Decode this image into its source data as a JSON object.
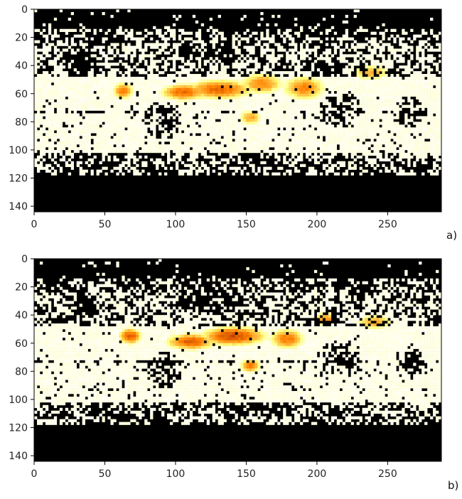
{
  "chart_data": [
    {
      "type": "heatmap",
      "panel_label": "a)",
      "xlabel": "",
      "ylabel": "",
      "xlim": [
        0,
        288
      ],
      "ylim": [
        144,
        0
      ],
      "x_ticks": [
        "0",
        "50",
        "100",
        "150",
        "200",
        "250"
      ],
      "y_ticks": [
        "0",
        "20",
        "40",
        "60",
        "80",
        "100",
        "120",
        "140"
      ],
      "x_tick_values": [
        0,
        50,
        100,
        150,
        200,
        250
      ],
      "y_tick_values": [
        0,
        20,
        40,
        60,
        80,
        100,
        120,
        140
      ],
      "colormap": "afmhot",
      "background_color": "#000000",
      "grid": false,
      "hotspots": [
        {
          "x": 62,
          "y": 57,
          "rx": 6,
          "ry": 5,
          "intensity": 0.75
        },
        {
          "x": 105,
          "y": 58,
          "rx": 14,
          "ry": 5,
          "intensity": 0.8
        },
        {
          "x": 130,
          "y": 56,
          "rx": 20,
          "ry": 6,
          "intensity": 0.8
        },
        {
          "x": 160,
          "y": 52,
          "rx": 12,
          "ry": 6,
          "intensity": 0.7
        },
        {
          "x": 190,
          "y": 55,
          "rx": 12,
          "ry": 7,
          "intensity": 0.7
        },
        {
          "x": 152,
          "y": 76,
          "rx": 6,
          "ry": 4,
          "intensity": 0.6
        },
        {
          "x": 237,
          "y": 44,
          "rx": 10,
          "ry": 4,
          "intensity": 0.55
        }
      ]
    },
    {
      "type": "heatmap",
      "panel_label": "b)",
      "xlabel": "",
      "ylabel": "",
      "xlim": [
        0,
        288
      ],
      "ylim": [
        144,
        0
      ],
      "x_ticks": [
        "0",
        "50",
        "100",
        "150",
        "200",
        "250"
      ],
      "y_ticks": [
        "0",
        "20",
        "40",
        "60",
        "80",
        "100",
        "120",
        "140"
      ],
      "x_tick_values": [
        0,
        50,
        100,
        150,
        200,
        250
      ],
      "y_tick_values": [
        0,
        20,
        40,
        60,
        80,
        100,
        120,
        140
      ],
      "colormap": "afmhot",
      "background_color": "#000000",
      "grid": false,
      "hotspots": [
        {
          "x": 67,
          "y": 54,
          "rx": 7,
          "ry": 5,
          "intensity": 0.85
        },
        {
          "x": 110,
          "y": 58,
          "rx": 15,
          "ry": 5,
          "intensity": 0.85
        },
        {
          "x": 140,
          "y": 54,
          "rx": 20,
          "ry": 6,
          "intensity": 0.9
        },
        {
          "x": 178,
          "y": 56,
          "rx": 10,
          "ry": 6,
          "intensity": 0.75
        },
        {
          "x": 205,
          "y": 42,
          "rx": 6,
          "ry": 4,
          "intensity": 0.7
        },
        {
          "x": 152,
          "y": 75,
          "rx": 6,
          "ry": 4,
          "intensity": 0.75
        },
        {
          "x": 240,
          "y": 44,
          "rx": 10,
          "ry": 4,
          "intensity": 0.6
        }
      ]
    }
  ]
}
